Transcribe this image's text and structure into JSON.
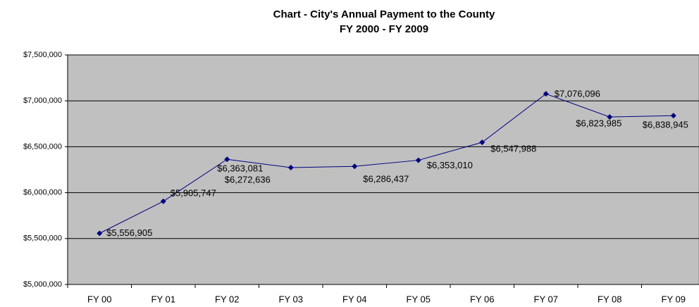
{
  "chart_data": {
    "type": "line",
    "title": "Chart - City's Annual Payment to the County",
    "subtitle": "FY 2000 - FY 2009",
    "categories": [
      "FY 00",
      "FY 01",
      "FY 02",
      "FY 03",
      "FY 04",
      "FY 05",
      "FY 06",
      "FY 07",
      "FY 08",
      "FY 09"
    ],
    "values": [
      5556905,
      5905747,
      6363081,
      6272636,
      6286437,
      6353010,
      6547988,
      7076096,
      6823985,
      6838945
    ],
    "value_labels": [
      "$5,556,905",
      "$5,905,747",
      "$6,363,081",
      "$6,272,636",
      "$6,286,437",
      "$6,353,010",
      "$6,547,988",
      "$7,076,096",
      "$6,823,985",
      "$6,838,945"
    ],
    "color": "#000080",
    "ylim": [
      5000000,
      7500000
    ],
    "yticks": [
      {
        "value": 5000000,
        "label": "$5,000,000"
      },
      {
        "value": 5500000,
        "label": "$5,500,000"
      },
      {
        "value": 6000000,
        "label": "$6,000,000"
      },
      {
        "value": 6500000,
        "label": "$6,500,000"
      },
      {
        "value": 7000000,
        "label": "$7,000,000"
      },
      {
        "value": 7500000,
        "label": "$7,500,000"
      }
    ],
    "grid": true
  }
}
